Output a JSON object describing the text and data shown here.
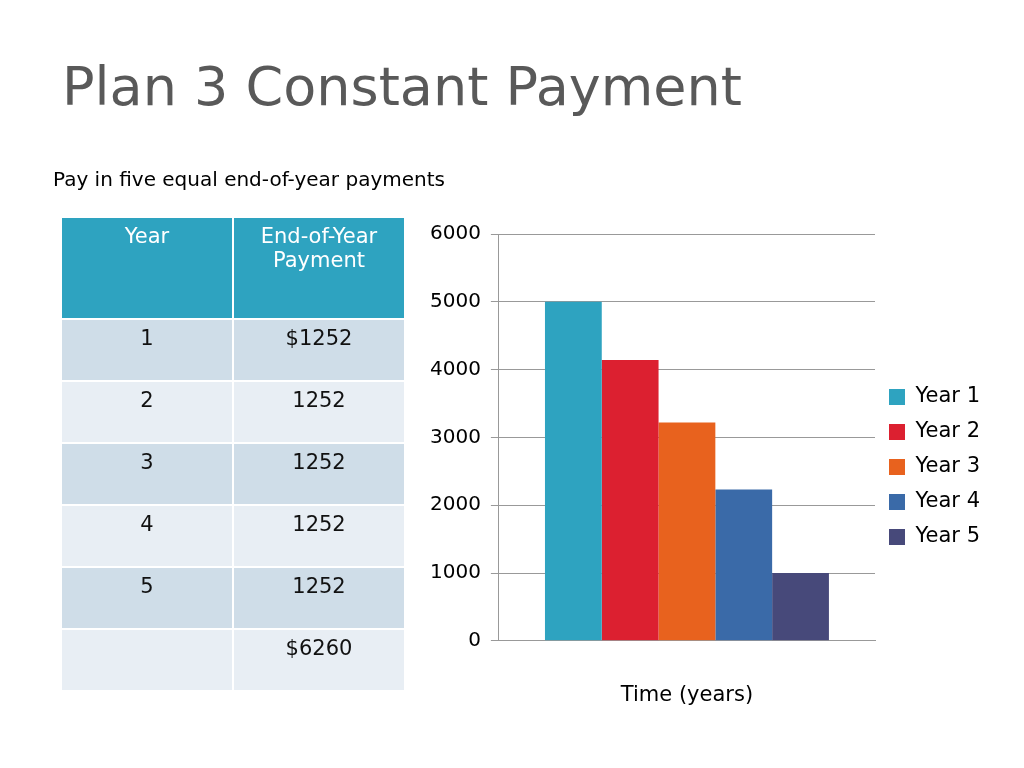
{
  "chart_data": {
    "type": "bar",
    "title": "Plan 3 Constant Payment",
    "subtitle": "Pay in five equal end-of-year payments",
    "xlabel": "Time (years)",
    "categories": [
      null
    ],
    "annotations": [
      "Year",
      "End-of-Year Payment",
      "1",
      "$1252",
      "2",
      "1252",
      "3",
      "1252",
      "4",
      "1252",
      "5",
      "1252",
      "$6260"
    ],
    "series": [
      {
        "name": "Year 1",
        "color": "#2ea3c0",
        "values": [
          5000
        ]
      },
      {
        "name": "Year 2",
        "color": "#dc2030",
        "values": [
          4140
        ]
      },
      {
        "name": "Year 3",
        "color": "#e8621e",
        "values": [
          3220
        ]
      },
      {
        "name": "Year 4",
        "color": "#3a6aa8",
        "values": [
          2230
        ]
      },
      {
        "name": "Year 5",
        "color": "#47497a",
        "values": [
          1000
        ]
      }
    ],
    "ylim": [
      0,
      6000
    ],
    "yticks": [
      0,
      1000,
      2000,
      3000,
      4000,
      5000,
      6000
    ],
    "grid": "y",
    "legend": "right"
  }
}
